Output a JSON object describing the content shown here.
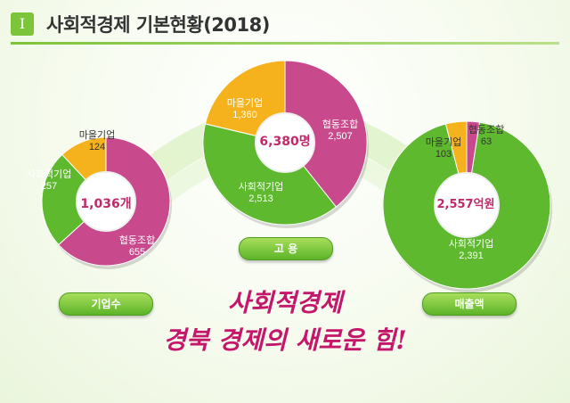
{
  "header": {
    "badge": "I",
    "title": "사회적경제 기본현황(2018)"
  },
  "slogan": {
    "line1": "사회적경제",
    "line2": "경북 경제의 새로운 힘!"
  },
  "colors": {
    "magenta": "#c84a8c",
    "green": "#5eb92e",
    "orange": "#f5b21c",
    "accent_text": "#c02a6a"
  },
  "chart_data": [
    {
      "type": "pie",
      "pill_label": "기업수",
      "center": "1,036개",
      "slices": [
        {
          "name": "협동조합",
          "value": 655,
          "value_label": "655",
          "color": "#c84a8c"
        },
        {
          "name": "사회적기업",
          "value": 257,
          "value_label": "257",
          "color": "#5eb92e"
        },
        {
          "name": "마을기업",
          "value": 124,
          "value_label": "124",
          "color": "#f5b21c"
        }
      ]
    },
    {
      "type": "pie",
      "pill_label": "고 용",
      "center": "6,380명",
      "slices": [
        {
          "name": "협동조합",
          "value": 2507,
          "value_label": "2,507",
          "color": "#c84a8c"
        },
        {
          "name": "사회적기업",
          "value": 2513,
          "value_label": "2,513",
          "color": "#5eb92e"
        },
        {
          "name": "마을기업",
          "value": 1360,
          "value_label": "1,360",
          "color": "#f5b21c"
        }
      ]
    },
    {
      "type": "pie",
      "pill_label": "매출액",
      "center": "2,557억원",
      "slices": [
        {
          "name": "협동조합",
          "value": 63,
          "value_label": "63",
          "color": "#c84a8c"
        },
        {
          "name": "사회적기업",
          "value": 2391,
          "value_label": "2,391",
          "color": "#5eb92e"
        },
        {
          "name": "마을기업",
          "value": 103,
          "value_label": "103",
          "color": "#f5b21c"
        }
      ]
    }
  ]
}
